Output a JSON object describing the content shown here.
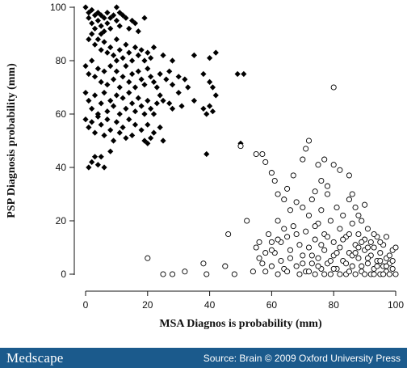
{
  "chart_data": {
    "type": "scatter",
    "title": "",
    "xlabel": "MSA Diagnos is probability (mm)",
    "ylabel": "PSP Diagnosis probability (mm)",
    "xlim": [
      0,
      100
    ],
    "ylim": [
      0,
      100
    ],
    "xticks": [
      "0",
      "20",
      "40",
      "60",
      "80",
      "100"
    ],
    "yticks": [
      "0",
      "20",
      "40",
      "60",
      "80",
      "100"
    ],
    "grid": false,
    "legend": "none",
    "series": [
      {
        "marker": "filled-diamond",
        "color": "#000000",
        "points": [
          [
            0,
            100
          ],
          [
            1,
            98
          ],
          [
            1,
            96
          ],
          [
            2,
            99
          ],
          [
            2,
            94
          ],
          [
            3,
            97
          ],
          [
            3,
            92
          ],
          [
            4,
            98
          ],
          [
            4,
            95
          ],
          [
            5,
            97
          ],
          [
            5,
            93
          ],
          [
            5,
            90
          ],
          [
            6,
            96
          ],
          [
            6,
            91
          ],
          [
            7,
            98
          ],
          [
            7,
            94
          ],
          [
            8,
            96
          ],
          [
            8,
            92
          ],
          [
            9,
            97
          ],
          [
            10,
            100
          ],
          [
            10,
            95
          ],
          [
            11,
            98
          ],
          [
            11,
            93
          ],
          [
            12,
            97
          ],
          [
            13,
            96
          ],
          [
            14,
            92
          ],
          [
            15,
            95
          ],
          [
            16,
            94
          ],
          [
            17,
            91
          ],
          [
            19,
            96
          ],
          [
            1,
            88
          ],
          [
            2,
            90
          ],
          [
            3,
            86
          ],
          [
            4,
            88
          ],
          [
            5,
            84
          ],
          [
            6,
            87
          ],
          [
            7,
            83
          ],
          [
            8,
            85
          ],
          [
            9,
            82
          ],
          [
            10,
            88
          ],
          [
            10,
            80
          ],
          [
            11,
            84
          ],
          [
            12,
            81
          ],
          [
            13,
            86
          ],
          [
            14,
            83
          ],
          [
            15,
            80
          ],
          [
            16,
            85
          ],
          [
            17,
            82
          ],
          [
            18,
            84
          ],
          [
            19,
            80
          ],
          [
            20,
            83
          ],
          [
            21,
            81
          ],
          [
            22,
            85
          ],
          [
            25,
            82
          ],
          [
            28,
            80
          ],
          [
            35,
            82
          ],
          [
            40,
            81
          ],
          [
            42,
            83
          ],
          [
            0,
            78
          ],
          [
            1,
            75
          ],
          [
            2,
            80
          ],
          [
            3,
            74
          ],
          [
            4,
            77
          ],
          [
            5,
            72
          ],
          [
            6,
            76
          ],
          [
            7,
            71
          ],
          [
            8,
            78
          ],
          [
            9,
            73
          ],
          [
            10,
            76
          ],
          [
            11,
            70
          ],
          [
            12,
            74
          ],
          [
            13,
            78
          ],
          [
            14,
            72
          ],
          [
            15,
            75
          ],
          [
            16,
            70
          ],
          [
            17,
            76
          ],
          [
            18,
            73
          ],
          [
            19,
            71
          ],
          [
            20,
            77
          ],
          [
            21,
            74
          ],
          [
            22,
            72
          ],
          [
            23,
            70
          ],
          [
            24,
            75
          ],
          [
            26,
            73
          ],
          [
            27,
            76
          ],
          [
            28,
            71
          ],
          [
            30,
            74
          ],
          [
            32,
            73
          ],
          [
            33,
            70
          ],
          [
            38,
            75
          ],
          [
            40,
            72
          ],
          [
            41,
            70
          ],
          [
            49,
            75
          ],
          [
            51,
            75
          ],
          [
            0,
            68
          ],
          [
            1,
            65
          ],
          [
            2,
            62
          ],
          [
            3,
            67
          ],
          [
            4,
            60
          ],
          [
            5,
            64
          ],
          [
            6,
            68
          ],
          [
            7,
            61
          ],
          [
            8,
            65
          ],
          [
            9,
            63
          ],
          [
            10,
            67
          ],
          [
            11,
            60
          ],
          [
            12,
            66
          ],
          [
            13,
            62
          ],
          [
            14,
            68
          ],
          [
            15,
            64
          ],
          [
            16,
            61
          ],
          [
            17,
            66
          ],
          [
            18,
            63
          ],
          [
            19,
            60
          ],
          [
            20,
            65
          ],
          [
            21,
            62
          ],
          [
            22,
            60
          ],
          [
            23,
            64
          ],
          [
            24,
            67
          ],
          [
            25,
            65
          ],
          [
            27,
            64
          ],
          [
            28,
            62
          ],
          [
            30,
            68
          ],
          [
            31,
            63
          ],
          [
            35,
            65
          ],
          [
            38,
            62
          ],
          [
            39,
            60
          ],
          [
            40,
            63
          ],
          [
            41,
            61
          ],
          [
            42,
            67
          ],
          [
            0,
            58
          ],
          [
            1,
            55
          ],
          [
            2,
            57
          ],
          [
            3,
            53
          ],
          [
            4,
            59
          ],
          [
            5,
            56
          ],
          [
            6,
            52
          ],
          [
            7,
            58
          ],
          [
            8,
            54
          ],
          [
            9,
            50
          ],
          [
            10,
            57
          ],
          [
            11,
            53
          ],
          [
            12,
            55
          ],
          [
            13,
            51
          ],
          [
            14,
            58
          ],
          [
            15,
            52
          ],
          [
            16,
            56
          ],
          [
            18,
            54
          ],
          [
            19,
            50
          ],
          [
            20,
            56
          ],
          [
            21,
            51
          ],
          [
            22,
            53
          ],
          [
            24,
            55
          ],
          [
            25,
            50
          ],
          [
            1,
            40
          ],
          [
            2,
            42
          ],
          [
            3,
            44
          ],
          [
            4,
            41
          ],
          [
            5,
            44
          ],
          [
            6,
            40
          ],
          [
            8,
            46
          ],
          [
            20,
            49
          ],
          [
            39,
            45
          ],
          [
            50,
            49
          ]
        ]
      },
      {
        "marker": "open-circle",
        "color": "#000000",
        "points": [
          [
            80,
            70
          ],
          [
            20,
            6
          ],
          [
            25,
            0
          ],
          [
            28,
            0
          ],
          [
            32,
            1
          ],
          [
            38,
            4
          ],
          [
            39,
            0
          ],
          [
            45,
            3
          ],
          [
            46,
            15
          ],
          [
            48,
            0
          ],
          [
            50,
            48
          ],
          [
            52,
            20
          ],
          [
            55,
            45
          ],
          [
            57,
            45
          ],
          [
            58,
            42
          ],
          [
            60,
            38
          ],
          [
            61,
            35
          ],
          [
            62,
            30
          ],
          [
            64,
            28
          ],
          [
            65,
            32
          ],
          [
            67,
            37
          ],
          [
            70,
            43
          ],
          [
            71,
            47
          ],
          [
            72,
            50
          ],
          [
            75,
            41
          ],
          [
            77,
            43
          ],
          [
            80,
            41
          ],
          [
            82,
            39
          ],
          [
            85,
            37
          ],
          [
            55,
            10
          ],
          [
            56,
            6
          ],
          [
            57,
            4
          ],
          [
            58,
            1
          ],
          [
            59,
            15
          ],
          [
            60,
            12
          ],
          [
            61,
            8
          ],
          [
            62,
            20
          ],
          [
            63,
            5
          ],
          [
            64,
            2
          ],
          [
            65,
            14
          ],
          [
            66,
            9
          ],
          [
            67,
            18
          ],
          [
            68,
            3
          ],
          [
            69,
            11
          ],
          [
            70,
            25
          ],
          [
            70,
            7
          ],
          [
            71,
            16
          ],
          [
            71,
            1
          ],
          [
            72,
            22
          ],
          [
            72,
            10
          ],
          [
            73,
            4
          ],
          [
            73,
            28
          ],
          [
            74,
            13
          ],
          [
            74,
            0
          ],
          [
            75,
            19
          ],
          [
            75,
            6
          ],
          [
            76,
            24
          ],
          [
            76,
            2
          ],
          [
            77,
            15
          ],
          [
            77,
            9
          ],
          [
            78,
            30
          ],
          [
            78,
            4
          ],
          [
            79,
            20
          ],
          [
            79,
            0
          ],
          [
            80,
            12
          ],
          [
            80,
            7
          ],
          [
            81,
            25
          ],
          [
            81,
            2
          ],
          [
            82,
            17
          ],
          [
            82,
            10
          ],
          [
            83,
            5
          ],
          [
            83,
            22
          ],
          [
            84,
            14
          ],
          [
            84,
            0
          ],
          [
            85,
            28
          ],
          [
            85,
            8
          ],
          [
            86,
            19
          ],
          [
            86,
            3
          ],
          [
            87,
            11
          ],
          [
            87,
            25
          ],
          [
            88,
            6
          ],
          [
            88,
            15
          ],
          [
            89,
            1
          ],
          [
            89,
            20
          ],
          [
            90,
            9
          ],
          [
            90,
            13
          ],
          [
            91,
            4
          ],
          [
            91,
            17
          ],
          [
            92,
            7
          ],
          [
            92,
            0
          ],
          [
            93,
            10
          ],
          [
            93,
            2
          ],
          [
            94,
            14
          ],
          [
            94,
            5
          ],
          [
            95,
            8
          ],
          [
            95,
            0
          ],
          [
            96,
            11
          ],
          [
            96,
            3
          ],
          [
            97,
            6
          ],
          [
            97,
            1
          ],
          [
            98,
            4
          ],
          [
            98,
            0
          ],
          [
            99,
            9
          ],
          [
            99,
            2
          ],
          [
            100,
            0
          ],
          [
            100,
            10
          ],
          [
            60,
            3
          ],
          [
            62,
            0
          ],
          [
            63,
            12
          ],
          [
            65,
            1
          ],
          [
            66,
            6
          ],
          [
            68,
            15
          ],
          [
            69,
            0
          ],
          [
            70,
            4
          ],
          [
            72,
            1
          ],
          [
            73,
            7
          ],
          [
            74,
            18
          ],
          [
            75,
            3
          ],
          [
            76,
            11
          ],
          [
            77,
            0
          ],
          [
            78,
            14
          ],
          [
            79,
            5
          ],
          [
            80,
            2
          ],
          [
            81,
            8
          ],
          [
            82,
            0
          ],
          [
            83,
            13
          ],
          [
            84,
            4
          ],
          [
            85,
            1
          ],
          [
            86,
            7
          ],
          [
            87,
            0
          ],
          [
            88,
            10
          ],
          [
            89,
            3
          ],
          [
            90,
            0
          ],
          [
            91,
            6
          ],
          [
            92,
            12
          ],
          [
            93,
            0
          ],
          [
            94,
            3
          ],
          [
            95,
            5
          ],
          [
            96,
            0
          ],
          [
            97,
            3
          ],
          [
            98,
            7
          ],
          [
            85,
            15
          ],
          [
            87,
            8
          ],
          [
            89,
            12
          ],
          [
            91,
            10
          ],
          [
            93,
            15
          ],
          [
            95,
            12
          ],
          [
            97,
            14
          ],
          [
            99,
            5
          ],
          [
            86,
            30
          ],
          [
            88,
            22
          ],
          [
            90,
            26
          ],
          [
            76,
            35
          ],
          [
            78,
            33
          ],
          [
            74,
            31
          ],
          [
            68,
            27
          ],
          [
            66,
            24
          ],
          [
            64,
            17
          ],
          [
            62,
            13
          ],
          [
            60,
            9
          ],
          [
            58,
            8
          ],
          [
            56,
            12
          ],
          [
            54,
            1
          ]
        ]
      }
    ]
  },
  "footer": {
    "logo": "Medscape",
    "source": "Source: Brain © 2009 Oxford University Press"
  }
}
